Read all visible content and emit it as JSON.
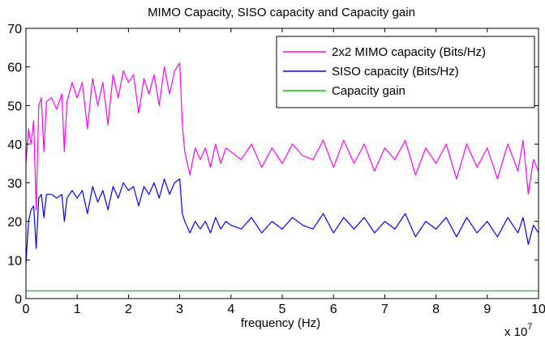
{
  "chart_data": {
    "type": "line",
    "title": "MIMO Capacity, SISO capacity and Capacity gain",
    "xlabel": "frequency (Hz)",
    "ylabel": "",
    "x_multiplier": "x 10",
    "x_multiplier_exp": "7",
    "xlim": [
      0,
      10
    ],
    "ylim": [
      0,
      70
    ],
    "xticks": [
      0,
      1,
      2,
      3,
      4,
      5,
      6,
      7,
      8,
      9,
      10
    ],
    "yticks": [
      0,
      10,
      20,
      30,
      40,
      50,
      60,
      70
    ],
    "grid": false,
    "legend_position": "top-right",
    "series": [
      {
        "name": "2x2 MIMO capacity (Bits/Hz)",
        "color": "#ff00ff",
        "x": [
          0,
          0.05,
          0.1,
          0.15,
          0.2,
          0.25,
          0.3,
          0.35,
          0.4,
          0.5,
          0.6,
          0.7,
          0.75,
          0.8,
          0.9,
          1.0,
          1.1,
          1.2,
          1.3,
          1.4,
          1.5,
          1.6,
          1.7,
          1.8,
          1.9,
          2.0,
          2.1,
          2.2,
          2.3,
          2.4,
          2.5,
          2.6,
          2.7,
          2.8,
          2.9,
          3.0,
          3.05,
          3.1,
          3.2,
          3.3,
          3.4,
          3.5,
          3.6,
          3.7,
          3.8,
          3.9,
          4.0,
          4.2,
          4.4,
          4.6,
          4.8,
          5.0,
          5.2,
          5.4,
          5.6,
          5.8,
          6.0,
          6.2,
          6.4,
          6.6,
          6.8,
          7.0,
          7.2,
          7.4,
          7.6,
          7.8,
          8.0,
          8.2,
          8.4,
          8.6,
          8.8,
          9.0,
          9.2,
          9.4,
          9.6,
          9.7,
          9.8,
          9.9,
          10.0
        ],
        "y": [
          35,
          44,
          40,
          46,
          23,
          50,
          52,
          38,
          51,
          52,
          49,
          53,
          38,
          51,
          56,
          52,
          56,
          44,
          57,
          50,
          56,
          45,
          58,
          52,
          59,
          56,
          58,
          48,
          57,
          53,
          58,
          50,
          60,
          53,
          59,
          61,
          45,
          38,
          32,
          39,
          36,
          39,
          34,
          40,
          35,
          39,
          38,
          36,
          40,
          34,
          39,
          35,
          40,
          37,
          36,
          41,
          34,
          41,
          35,
          40,
          33,
          39,
          36,
          41,
          32,
          39,
          35,
          40,
          31,
          40,
          34,
          39,
          31,
          40,
          33,
          41,
          27,
          36,
          33
        ]
      },
      {
        "name": "SISO capacity (Bits/Hz)",
        "color": "#0000ff",
        "x": [
          0,
          0.05,
          0.1,
          0.15,
          0.2,
          0.25,
          0.3,
          0.35,
          0.4,
          0.5,
          0.6,
          0.7,
          0.75,
          0.8,
          0.9,
          1.0,
          1.1,
          1.2,
          1.3,
          1.4,
          1.5,
          1.6,
          1.7,
          1.8,
          1.9,
          2.0,
          2.1,
          2.2,
          2.3,
          2.4,
          2.5,
          2.6,
          2.7,
          2.8,
          2.9,
          3.0,
          3.05,
          3.1,
          3.2,
          3.3,
          3.4,
          3.5,
          3.6,
          3.7,
          3.8,
          3.9,
          4.0,
          4.2,
          4.4,
          4.6,
          4.8,
          5.0,
          5.2,
          5.4,
          5.6,
          5.8,
          6.0,
          6.2,
          6.4,
          6.6,
          6.8,
          7.0,
          7.2,
          7.4,
          7.6,
          7.8,
          8.0,
          8.2,
          8.4,
          8.6,
          8.8,
          9.0,
          9.2,
          9.4,
          9.6,
          9.7,
          9.8,
          9.9,
          10.0
        ],
        "y": [
          9,
          20,
          23,
          24,
          13,
          26,
          27,
          21,
          27,
          27,
          26,
          27,
          20,
          26,
          28,
          26,
          28,
          22,
          29,
          25,
          28,
          23,
          29,
          26,
          30,
          28,
          29,
          24,
          29,
          27,
          30,
          26,
          31,
          27,
          30,
          31,
          22,
          20,
          17,
          20,
          18,
          20,
          17,
          21,
          18,
          20,
          19,
          18,
          21,
          17,
          20,
          18,
          21,
          19,
          18,
          22,
          17,
          21,
          18,
          21,
          17,
          20,
          18,
          22,
          16,
          20,
          18,
          21,
          16,
          21,
          17,
          20,
          16,
          21,
          17,
          21,
          14,
          19,
          17
        ]
      },
      {
        "name": "Capacity gain",
        "color": "#00cc00",
        "x": [
          0,
          1,
          2,
          3,
          4,
          5,
          6,
          7,
          8,
          9,
          10
        ],
        "y": [
          2,
          2,
          2,
          2,
          2,
          2,
          2,
          2,
          2,
          2,
          2
        ]
      }
    ]
  }
}
